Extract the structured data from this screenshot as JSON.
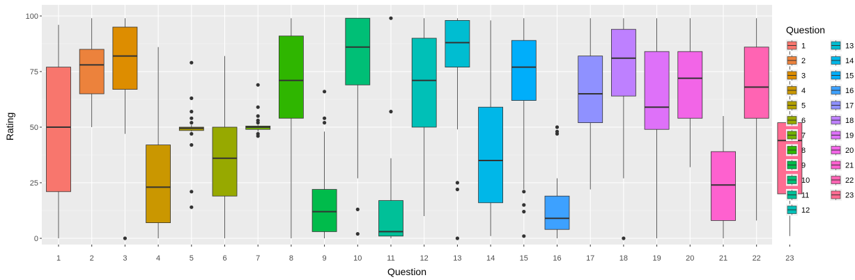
{
  "chart_data": {
    "type": "boxplot",
    "title": "",
    "xlabel": "Question",
    "ylabel": "Rating",
    "ylim": [
      0,
      100
    ],
    "yticks": [
      0,
      25,
      50,
      75,
      100
    ],
    "grid": true,
    "legend": {
      "title": "Question",
      "position": "right",
      "columns": 2
    },
    "categories": [
      "1",
      "2",
      "3",
      "4",
      "5",
      "6",
      "7",
      "8",
      "9",
      "10",
      "11",
      "12",
      "13",
      "14",
      "15",
      "16",
      "17",
      "18",
      "19",
      "20",
      "21",
      "22",
      "23"
    ],
    "colors": [
      "#F8766D",
      "#EC823C",
      "#DD8D00",
      "#CA9700",
      "#B3A000",
      "#97A900",
      "#71B000",
      "#2FB600",
      "#00BB4B",
      "#00BF76",
      "#00C098",
      "#00C0B7",
      "#00BDD1",
      "#00B7E8",
      "#00AEFA",
      "#3DA1FF",
      "#8F91FF",
      "#BE80FF",
      "#DE71F9",
      "#F265E7",
      "#FE61CF",
      "#FF64B3",
      "#FF6C92"
    ],
    "boxes": [
      {
        "question": "1",
        "whisker_low": 0,
        "q1": 21,
        "median": 50,
        "q3": 77,
        "whisker_high": 96,
        "outliers": []
      },
      {
        "question": "2",
        "whisker_low": 50,
        "q1": 65,
        "median": 78,
        "q3": 85,
        "whisker_high": 99,
        "outliers": []
      },
      {
        "question": "3",
        "whisker_low": 47,
        "q1": 67,
        "median": 82,
        "q3": 95,
        "whisker_high": 99,
        "outliers": [
          0
        ]
      },
      {
        "question": "4",
        "whisker_low": 0,
        "q1": 7,
        "median": 23,
        "q3": 42,
        "whisker_high": 86,
        "outliers": []
      },
      {
        "question": "5",
        "whisker_low": 48,
        "q1": 48.5,
        "median": 49.5,
        "q3": 50,
        "whisker_high": 51,
        "outliers": [
          14,
          21,
          42,
          47,
          52,
          54,
          57,
          63,
          79
        ]
      },
      {
        "question": "6",
        "whisker_low": 0,
        "q1": 19,
        "median": 36,
        "q3": 50,
        "whisker_high": 82,
        "outliers": []
      },
      {
        "question": "7",
        "whisker_low": 48,
        "q1": 49,
        "median": 50,
        "q3": 50.5,
        "whisker_high": 51,
        "outliers": [
          46,
          47,
          52,
          53,
          55,
          59,
          69
        ]
      },
      {
        "question": "8",
        "whisker_low": 0,
        "q1": 54,
        "median": 71,
        "q3": 91,
        "whisker_high": 99,
        "outliers": []
      },
      {
        "question": "9",
        "whisker_low": 0,
        "q1": 3,
        "median": 12,
        "q3": 22,
        "whisker_high": 48,
        "outliers": [
          52,
          54,
          66
        ]
      },
      {
        "question": "10",
        "whisker_low": 27,
        "q1": 69,
        "median": 86,
        "q3": 99,
        "whisker_high": 99,
        "outliers": [
          2,
          13
        ]
      },
      {
        "question": "11",
        "whisker_low": 0,
        "q1": 1,
        "median": 3,
        "q3": 17,
        "whisker_high": 36,
        "outliers": [
          57,
          99
        ]
      },
      {
        "question": "12",
        "whisker_low": 10,
        "q1": 50,
        "median": 71,
        "q3": 90,
        "whisker_high": 99,
        "outliers": []
      },
      {
        "question": "13",
        "whisker_low": 49,
        "q1": 77,
        "median": 88,
        "q3": 98,
        "whisker_high": 99,
        "outliers": [
          0,
          22,
          25
        ]
      },
      {
        "question": "14",
        "whisker_low": 1,
        "q1": 16,
        "median": 35,
        "q3": 59,
        "whisker_high": 98,
        "outliers": []
      },
      {
        "question": "15",
        "whisker_low": 22,
        "q1": 62,
        "median": 77,
        "q3": 89,
        "whisker_high": 99,
        "outliers": [
          1,
          12,
          15,
          21
        ]
      },
      {
        "question": "16",
        "whisker_low": 0,
        "q1": 4,
        "median": 9,
        "q3": 19,
        "whisker_high": 27,
        "outliers": [
          47,
          48,
          50
        ]
      },
      {
        "question": "17",
        "whisker_low": 22,
        "q1": 52,
        "median": 65,
        "q3": 82,
        "whisker_high": 99,
        "outliers": []
      },
      {
        "question": "18",
        "whisker_low": 27,
        "q1": 64,
        "median": 81,
        "q3": 94,
        "whisker_high": 99,
        "outliers": [
          0
        ]
      },
      {
        "question": "19",
        "whisker_low": 0,
        "q1": 49,
        "median": 59,
        "q3": 84,
        "whisker_high": 99,
        "outliers": []
      },
      {
        "question": "20",
        "whisker_low": 32,
        "q1": 54,
        "median": 72,
        "q3": 84,
        "whisker_high": 99,
        "outliers": []
      },
      {
        "question": "21",
        "whisker_low": 0,
        "q1": 8,
        "median": 24,
        "q3": 39,
        "whisker_high": 55,
        "outliers": []
      },
      {
        "question": "22",
        "whisker_low": 8,
        "q1": 54,
        "median": 68,
        "q3": 86,
        "whisker_high": 99,
        "outliers": []
      },
      {
        "question": "23",
        "whisker_low": 1,
        "q1": 20,
        "median": 44,
        "q3": 52,
        "whisker_high": 86,
        "outliers": []
      }
    ]
  }
}
